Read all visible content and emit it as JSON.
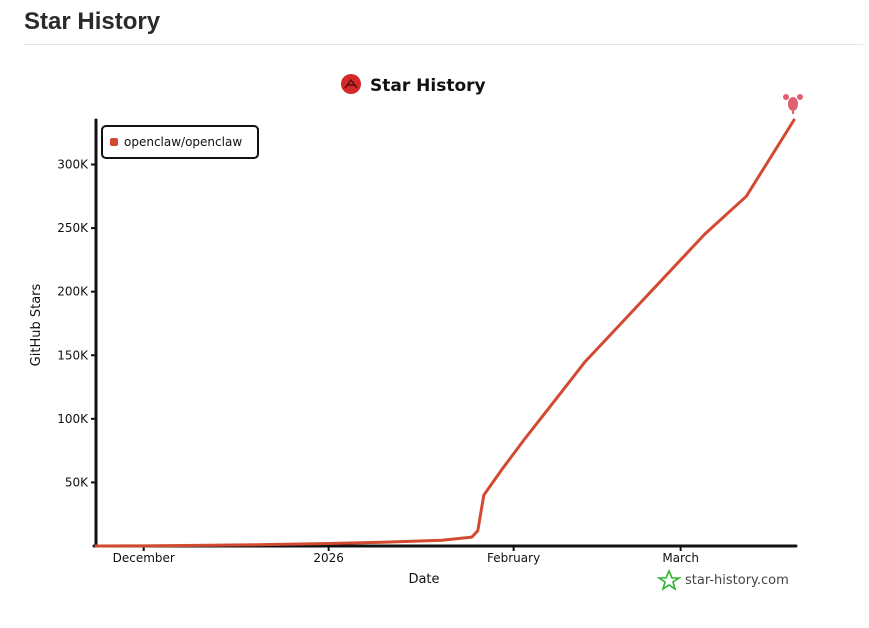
{
  "page": {
    "title": "Star History"
  },
  "chart_data": {
    "type": "line",
    "title": "Star History",
    "xlabel": "Date",
    "ylabel": "GitHub Stars",
    "x_tick_labels": [
      "December",
      "2026",
      "February",
      "March"
    ],
    "y_tick_labels": [
      "50K",
      "100K",
      "150K",
      "200K",
      "250K",
      "300K"
    ],
    "y_ticks": [
      50000,
      100000,
      150000,
      200000,
      250000,
      300000
    ],
    "ylim": [
      0,
      335000
    ],
    "xlim": [
      "2025-11-23",
      "2026-03-20"
    ],
    "legend_position": "top-left",
    "watermark": "star-history.com",
    "series": [
      {
        "name": "openclaw/openclaw",
        "color": "#d24a32",
        "points": [
          [
            "2025-11-23",
            0
          ],
          [
            "2025-12-01",
            100
          ],
          [
            "2025-12-10",
            500
          ],
          [
            "2025-12-20",
            1000
          ],
          [
            "2026-01-01",
            2000
          ],
          [
            "2026-01-10",
            3000
          ],
          [
            "2026-01-20",
            4500
          ],
          [
            "2026-01-25",
            7000
          ],
          [
            "2026-01-26",
            12000
          ],
          [
            "2026-01-27",
            40000
          ],
          [
            "2026-01-30",
            60000
          ],
          [
            "2026-02-03",
            85000
          ],
          [
            "2026-02-08",
            115000
          ],
          [
            "2026-02-13",
            145000
          ],
          [
            "2026-02-20",
            180000
          ],
          [
            "2026-02-28",
            220000
          ],
          [
            "2026-03-05",
            245000
          ],
          [
            "2026-03-12",
            275000
          ],
          [
            "2026-03-20",
            335000
          ]
        ]
      }
    ]
  }
}
